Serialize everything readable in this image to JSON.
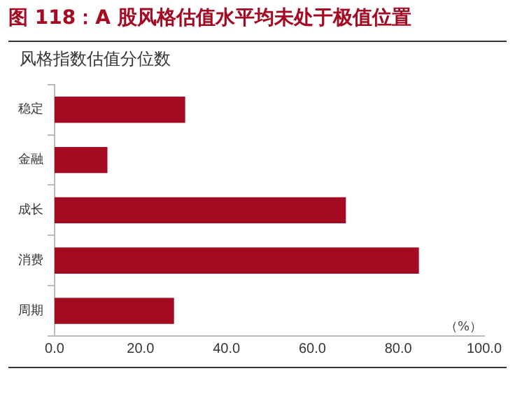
{
  "chart_data": {
    "type": "bar",
    "orientation": "horizontal",
    "title": "图 118：A 股风格估值水平均未处于极值位置",
    "subtitle": "风格指数估值分位数",
    "xlabel": "（%）",
    "categories": [
      "稳定",
      "金融",
      "成长",
      "消费",
      "周期"
    ],
    "values": [
      30.4,
      12.3,
      67.8,
      84.8,
      27.8
    ],
    "color": "#a50a23",
    "xlim": [
      0,
      100
    ],
    "xticks": [
      {
        "value": 0,
        "label": "0.0"
      },
      {
        "value": 20,
        "label": "20.0"
      },
      {
        "value": 40,
        "label": "40.0"
      },
      {
        "value": 60,
        "label": "60.0"
      },
      {
        "value": 80,
        "label": "80.0"
      },
      {
        "value": 100,
        "label": "100.0"
      }
    ],
    "grid": false,
    "legend": false
  }
}
